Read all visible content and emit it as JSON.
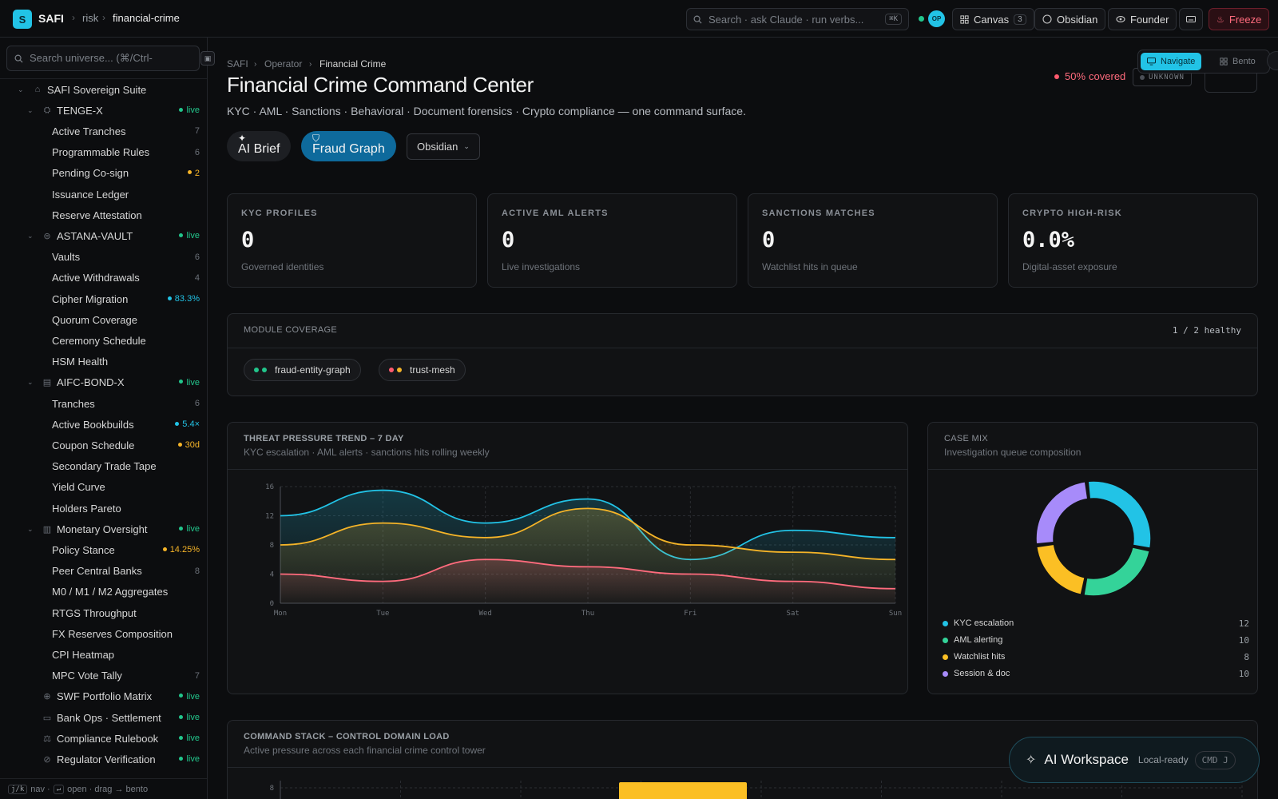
{
  "topbar": {
    "app_initial": "S",
    "app_name": "SAFI",
    "breadcrumb": [
      "risk",
      "financial-crime"
    ],
    "search_placeholder": "Search · ask Claude · run verbs...",
    "search_shortcut": "⌘K",
    "avatar_initials": "OP",
    "canvas_label": "Canvas",
    "canvas_count": "3",
    "theme_label": "Obsidian",
    "role_label": "Founder",
    "freeze_label": "Freeze"
  },
  "sidebar": {
    "search_placeholder": "Search universe... (⌘/Ctrl-",
    "root": "SAFI Sovereign Suite",
    "groups": [
      {
        "name": "TENGE-X",
        "badge": "live",
        "items": [
          {
            "label": "Active Tranches",
            "badge": "7"
          },
          {
            "label": "Programmable Rules",
            "badge": "6"
          },
          {
            "label": "Pending Co-sign",
            "badge": "2",
            "tone": "amber"
          },
          {
            "label": "Issuance Ledger",
            "badge": ""
          },
          {
            "label": "Reserve Attestation",
            "badge": ""
          }
        ]
      },
      {
        "name": "ASTANA-VAULT",
        "badge": "live",
        "items": [
          {
            "label": "Vaults",
            "badge": "6"
          },
          {
            "label": "Active Withdrawals",
            "badge": "4"
          },
          {
            "label": "Cipher Migration",
            "badge": "83.3%",
            "tone": "cyan"
          },
          {
            "label": "Quorum Coverage",
            "badge": ""
          },
          {
            "label": "Ceremony Schedule",
            "badge": ""
          },
          {
            "label": "HSM Health",
            "badge": ""
          }
        ]
      },
      {
        "name": "AIFC-BOND-X",
        "badge": "live",
        "items": [
          {
            "label": "Tranches",
            "badge": "6"
          },
          {
            "label": "Active Bookbuilds",
            "badge": "5.4×",
            "tone": "cyan"
          },
          {
            "label": "Coupon Schedule",
            "badge": "30d",
            "tone": "amber"
          },
          {
            "label": "Secondary Trade Tape",
            "badge": ""
          },
          {
            "label": "Yield Curve",
            "badge": ""
          },
          {
            "label": "Holders Pareto",
            "badge": ""
          }
        ]
      },
      {
        "name": "Monetary Oversight",
        "badge": "live",
        "items": [
          {
            "label": "Policy Stance",
            "badge": "14.25%",
            "tone": "amber"
          },
          {
            "label": "Peer Central Banks",
            "badge": "8"
          },
          {
            "label": "M0 / M1 / M2 Aggregates",
            "badge": ""
          },
          {
            "label": "RTGS Throughput",
            "badge": ""
          },
          {
            "label": "FX Reserves Composition",
            "badge": ""
          },
          {
            "label": "CPI Heatmap",
            "badge": ""
          },
          {
            "label": "MPC Vote Tally",
            "badge": "7"
          }
        ]
      }
    ],
    "extra": [
      {
        "label": "SWF Portfolio Matrix",
        "badge": "live"
      },
      {
        "label": "Bank Ops · Settlement",
        "badge": "live"
      },
      {
        "label": "Compliance Rulebook",
        "badge": "live"
      },
      {
        "label": "Regulator Verification",
        "badge": "live"
      }
    ],
    "footer": {
      "k1": "j/k",
      "t1": "nav ·",
      "k2": "↵",
      "t2": "open · drag → bento"
    }
  },
  "page": {
    "breadcrumb": [
      "SAFI",
      "Operator",
      "Financial Crime"
    ],
    "title": "Financial Crime Command Center",
    "subtitle": "KYC · AML · Sanctions · Behavioral · Document forensics · Crypto compliance — one command surface.",
    "ai_brief_label": "AI Brief",
    "fraud_graph_label": "Fraud Graph",
    "theme_select": "Obsidian",
    "coverage_pct": "50%",
    "coverage_label": "covered",
    "unknown_label": "UNKNOWN",
    "view_navigate": "Navigate",
    "view_bento": "Bento"
  },
  "kpis": [
    {
      "label": "KYC PROFILES",
      "value": "0",
      "sub": "Governed identities"
    },
    {
      "label": "ACTIVE AML ALERTS",
      "value": "0",
      "sub": "Live investigations"
    },
    {
      "label": "SANCTIONS MATCHES",
      "value": "0",
      "sub": "Watchlist hits in queue"
    },
    {
      "label": "CRYPTO HIGH-RISK",
      "value": "0.0%",
      "sub": "Digital-asset exposure"
    }
  ],
  "module_coverage": {
    "label": "MODULE COVERAGE",
    "healthy": "1 / 2 healthy",
    "chips": [
      {
        "name": "fraud-entity-graph",
        "dot1": "#22c58b",
        "dot2": "#22c58b"
      },
      {
        "name": "trust-mesh",
        "dot1": "#ff5a6e",
        "dot2": "#f5b428"
      }
    ]
  },
  "threat_trend": {
    "label": "THREAT PRESSURE TREND – 7 DAY",
    "sub": "KYC escalation · AML alerts · sanctions hits rolling weekly"
  },
  "case_mix": {
    "label": "CASE MIX",
    "sub": "Investigation queue composition"
  },
  "command_stack": {
    "label": "COMMAND STACK – CONTROL DOMAIN LOAD",
    "sub": "Active pressure across each financial crime control tower"
  },
  "ai_workspace": {
    "title": "AI Workspace",
    "status": "Local-ready",
    "shortcut": "CMD J"
  },
  "chart_data": [
    {
      "type": "area",
      "x": [
        "Mon",
        "Tue",
        "Wed",
        "Thu",
        "Fri",
        "Sat",
        "Sun"
      ],
      "ylim": [
        0,
        16
      ],
      "yticks": [
        0,
        4,
        8,
        12,
        16
      ],
      "grid": true,
      "series": [
        {
          "color": "#22c3e6",
          "values": [
            12,
            15.5,
            11,
            14.3,
            6,
            10,
            9
          ]
        },
        {
          "color": "#f5b428",
          "values": [
            8,
            11,
            9,
            13,
            8,
            7,
            6
          ]
        },
        {
          "color": "#ff6b7d",
          "values": [
            4,
            3,
            6,
            5,
            4,
            3,
            2
          ]
        }
      ]
    },
    {
      "type": "pie",
      "labels": [
        "KYC escalation",
        "AML alerting",
        "Watchlist hits",
        "Session & doc"
      ],
      "values": [
        12,
        10,
        8,
        10
      ],
      "colors": [
        "#22c3e6",
        "#34d399",
        "#fbbf24",
        "#a78bfa"
      ]
    },
    {
      "type": "bar",
      "yticks": [
        8
      ],
      "values": [
        8
      ],
      "color": "#fbbf24"
    }
  ]
}
